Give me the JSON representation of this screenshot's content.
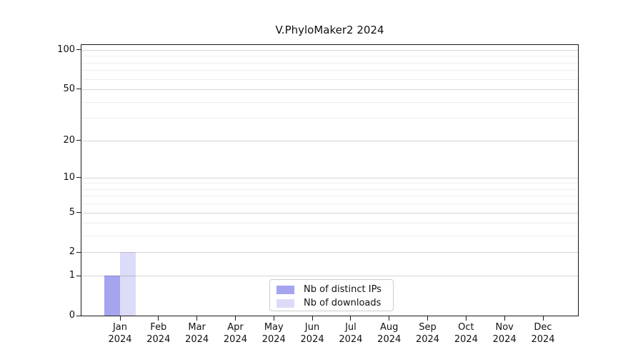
{
  "chart_data": {
    "type": "bar",
    "title": "V.PhyloMaker2 2024",
    "x_categories": [
      "Jan\n2024",
      "Feb\n2024",
      "Mar\n2024",
      "Apr\n2024",
      "May\n2024",
      "Jun\n2024",
      "Jul\n2024",
      "Aug\n2024",
      "Sep\n2024",
      "Oct\n2024",
      "Nov\n2024",
      "Dec\n2024"
    ],
    "series": [
      {
        "name": "Nb of distinct IPs",
        "color": "#a5a5ef",
        "values": [
          1,
          0,
          0,
          0,
          0,
          0,
          0,
          0,
          0,
          0,
          0,
          0
        ]
      },
      {
        "name": "Nb of downloads",
        "color": "#dcdcf8",
        "values": [
          2,
          0,
          0,
          0,
          0,
          0,
          0,
          0,
          0,
          0,
          0,
          0
        ]
      }
    ],
    "y_scale": "log1p",
    "ylim": [
      0,
      109
    ],
    "y_major_ticks": [
      0,
      1,
      2,
      5,
      10,
      20,
      50,
      100
    ],
    "y_minor_gridlines": [
      3,
      4,
      6,
      7,
      8,
      9,
      30,
      40,
      60,
      70,
      80,
      90
    ],
    "grid": true,
    "grid_above_bars": true,
    "legend_position": "bottom-center",
    "colors": {
      "major_grid": "#d5d5d5",
      "minor_grid": "#f0f0f0",
      "axis": "#1a1a1a"
    }
  }
}
